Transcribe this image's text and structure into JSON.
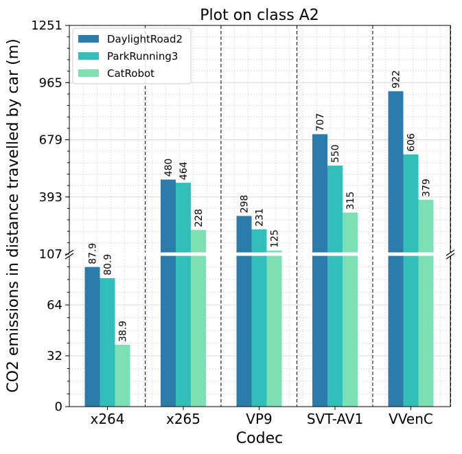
{
  "chart_data": {
    "type": "bar",
    "title": "Plot on class A2",
    "xlabel": "Codec",
    "ylabel": "CO2 emissions in distance travelled by car (m)",
    "categories": [
      "x264",
      "x265",
      "VP9",
      "SVT-AV1",
      "VVenC"
    ],
    "series": [
      {
        "name": "DaylightRoad2",
        "values": [
          87.9,
          480,
          298,
          707,
          922
        ],
        "labels": [
          "87.9",
          "480",
          "298",
          "707",
          "922"
        ]
      },
      {
        "name": "ParkRunning3",
        "values": [
          80.9,
          464,
          231,
          550,
          606
        ],
        "labels": [
          "80.9",
          "464",
          "231",
          "550",
          "606"
        ]
      },
      {
        "name": "CatRobot",
        "values": [
          38.9,
          228,
          125,
          315,
          379
        ],
        "labels": [
          "38.9",
          "228",
          "125",
          "315",
          "379"
        ]
      }
    ],
    "colors": [
      "#2b7bab",
      "#33bfb9",
      "#7ddfb4"
    ],
    "broken_axis": {
      "lower": {
        "ylim": [
          0,
          96
        ],
        "ticks": [
          "0",
          "32",
          "64"
        ]
      },
      "upper": {
        "ylim": [
          107,
          1251
        ],
        "ticks": [
          "107",
          "393",
          "679",
          "965",
          "1251"
        ]
      }
    },
    "legend_position": "top-left",
    "grid": true
  }
}
